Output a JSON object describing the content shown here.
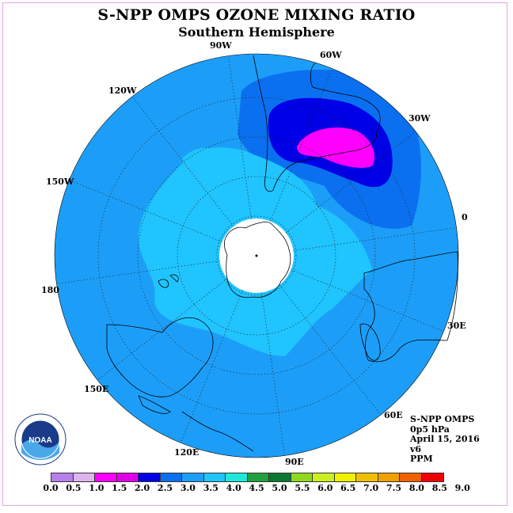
{
  "title": "S-NPP OMPS OZONE MIXING RATIO",
  "subtitle": "Southern Hemisphere",
  "longitude_labels": {
    "lon_90w": "90W",
    "lon_60w": "60W",
    "lon_30w": "30W",
    "lon_0": "0",
    "lon_30e": "30E",
    "lon_60e": "60E",
    "lon_90e": "90E",
    "lon_120e": "120E",
    "lon_150e": "150E",
    "lon_180": "180",
    "lon_150w": "150W",
    "lon_120w": "120W"
  },
  "info": {
    "product": "S-NPP OMPS",
    "level": "0p5 hPa",
    "date": "April 15, 2016",
    "version": "v6",
    "units": "PPM"
  },
  "logo": {
    "text": "NOAA",
    "ring_text": "NATIONAL OCEANIC AND ATMOSPHERIC ADMINISTRATION · U.S. DEPARTMENT OF COMMERCE"
  },
  "colorbar": {
    "ticks": [
      "0.0",
      "0.5",
      "1.0",
      "1.5",
      "2.0",
      "2.5",
      "3.0",
      "3.5",
      "4.0",
      "4.5",
      "5.0",
      "5.5",
      "6.0",
      "6.5",
      "7.0",
      "7.5",
      "8.0",
      "8.5",
      "9.0"
    ],
    "colors": [
      "#b77fe8",
      "#dcb4f0",
      "#ff00ff",
      "#e000e8",
      "#0000e6",
      "#0a70f0",
      "#1c9ef8",
      "#20c4ff",
      "#20e8d8",
      "#20a040",
      "#0a7830",
      "#90d820",
      "#c8f020",
      "#f0f000",
      "#f0c000",
      "#f0a000",
      "#f06000",
      "#f00000",
      "#8b4a2a"
    ]
  },
  "map_data": {
    "background_level_ppm": 2.5,
    "regions": [
      {
        "name": "polar-interior",
        "range_ppm": "3.0-3.5"
      },
      {
        "name": "outer-ring",
        "range_ppm": "2.5-3.0"
      },
      {
        "name": "atlantic-maximum-outer",
        "range_ppm": "2.0-2.5"
      },
      {
        "name": "atlantic-maximum-core",
        "range_ppm": "1.5-2.0"
      },
      {
        "name": "atlantic-maximum-peak",
        "range_ppm": "1.0-1.5"
      }
    ]
  }
}
